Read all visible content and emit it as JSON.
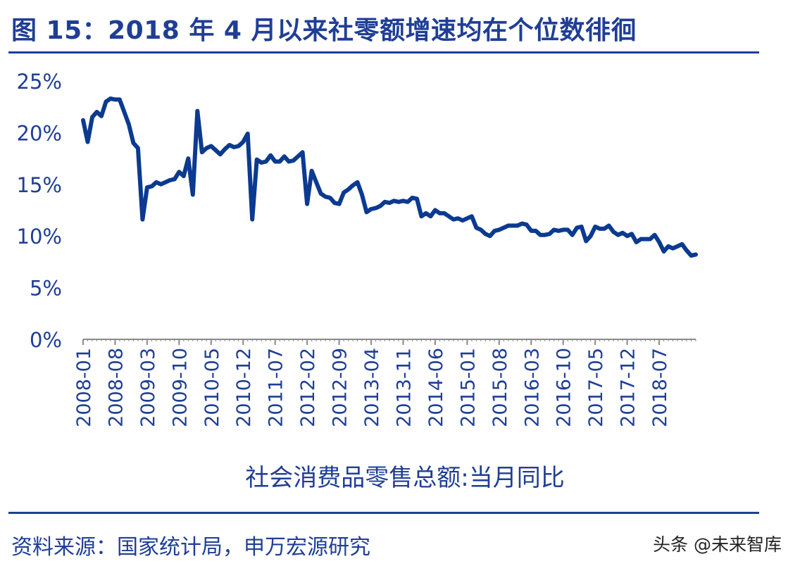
{
  "header": {
    "title": "图 15：2018 年 4 月以来社零额增速均在个位数徘徊"
  },
  "footer": {
    "source": "资料来源：国家统计局，申万宏源研究",
    "watermark": "头条 @未来智库"
  },
  "colors": {
    "accent": "#1F3E95",
    "series": "#0B3A8F"
  },
  "chart_data": {
    "type": "line",
    "title": "",
    "xlabel": "",
    "ylabel": "",
    "legend": "社会消费品零售总额:当月同比",
    "legend_placement": "bottom",
    "grid": false,
    "ylim": [
      0,
      25
    ],
    "yticks": [
      "0%",
      "5%",
      "10%",
      "15%",
      "20%",
      "25%"
    ],
    "x_start": "2008-01",
    "x_tick_labels": [
      "2008-01",
      "2008-08",
      "2009-03",
      "2009-10",
      "2010-05",
      "2010-12",
      "2011-07",
      "2012-02",
      "2012-09",
      "2013-04",
      "2013-11",
      "2014-06",
      "2015-01",
      "2015-08",
      "2016-03",
      "2016-10",
      "2017-05",
      "2017-12",
      "2018-07"
    ],
    "series": [
      {
        "name": "社会消费品零售总额:当月同比",
        "values": [
          21.2,
          19.1,
          21.5,
          22.0,
          21.6,
          23.0,
          23.3,
          23.2,
          23.2,
          22.0,
          20.8,
          19.0,
          18.5,
          11.6,
          14.7,
          14.8,
          15.2,
          15.0,
          15.2,
          15.4,
          15.5,
          16.2,
          15.8,
          17.5,
          14.0,
          22.1,
          18.1,
          18.5,
          18.7,
          18.3,
          17.9,
          18.4,
          18.8,
          18.6,
          18.7,
          19.1,
          19.9,
          11.6,
          17.4,
          17.1,
          17.2,
          17.8,
          17.2,
          17.2,
          17.7,
          17.2,
          17.3,
          17.7,
          18.1,
          13.1,
          16.3,
          15.2,
          14.1,
          13.8,
          13.7,
          13.2,
          13.1,
          14.2,
          14.5,
          14.9,
          15.2,
          14.0,
          12.3,
          12.6,
          12.7,
          12.9,
          13.3,
          13.2,
          13.4,
          13.3,
          13.4,
          13.3,
          13.7,
          13.6,
          11.9,
          12.2,
          11.9,
          12.5,
          12.2,
          12.2,
          11.9,
          11.6,
          11.7,
          11.5,
          11.7,
          11.9,
          10.8,
          10.6,
          10.2,
          10.0,
          10.5,
          10.6,
          10.8,
          11.0,
          11.0,
          11.0,
          11.2,
          11.1,
          10.5,
          10.5,
          10.1,
          10.1,
          10.2,
          10.6,
          10.5,
          10.6,
          10.6,
          10.1,
          10.8,
          10.9,
          9.5,
          10.0,
          10.9,
          10.7,
          10.7,
          11.0,
          10.4,
          10.1,
          10.3,
          10.0,
          10.2,
          9.4,
          9.7,
          9.7,
          9.7,
          10.1,
          9.4,
          8.5,
          9.0,
          8.8,
          9.0,
          9.2,
          8.6,
          8.1,
          8.2
        ]
      }
    ]
  }
}
